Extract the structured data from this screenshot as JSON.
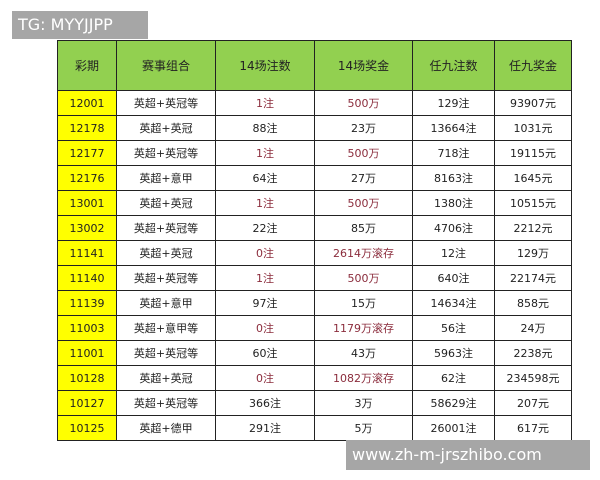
{
  "watermarks": {
    "top_left": "TG: MYYJJPP",
    "bottom_right": "www.zh-m-jrszhibo.com"
  },
  "colors": {
    "header_bg": "#92d050",
    "period_bg": "#ffff00",
    "highlight_text": "#8b2c3c"
  },
  "table": {
    "headers": [
      "彩期",
      "赛事组合",
      "14场注数",
      "14场奖金",
      "任九注数",
      "任九奖金"
    ],
    "rows": [
      {
        "period": "12001",
        "combo": "英超+英冠等",
        "n14": "1注",
        "p14": "500万",
        "n9": "129注",
        "p9": "93907元",
        "red": true
      },
      {
        "period": "12178",
        "combo": "英超+英冠",
        "n14": "88注",
        "p14": "23万",
        "n9": "13664注",
        "p9": "1031元",
        "red": false
      },
      {
        "period": "12177",
        "combo": "英超+英冠等",
        "n14": "1注",
        "p14": "500万",
        "n9": "718注",
        "p9": "19115元",
        "red": true
      },
      {
        "period": "12176",
        "combo": "英超+意甲",
        "n14": "64注",
        "p14": "27万",
        "n9": "8163注",
        "p9": "1645元",
        "red": false
      },
      {
        "period": "13001",
        "combo": "英超+英冠",
        "n14": "1注",
        "p14": "500万",
        "n9": "1380注",
        "p9": "10515元",
        "red": true
      },
      {
        "period": "13002",
        "combo": "英超+英冠等",
        "n14": "22注",
        "p14": "85万",
        "n9": "4706注",
        "p9": "2212元",
        "red": false
      },
      {
        "period": "11141",
        "combo": "英超+英冠",
        "n14": "0注",
        "p14": "2614万滚存",
        "n9": "12注",
        "p9": "129万",
        "red": true
      },
      {
        "period": "11140",
        "combo": "英超+英冠等",
        "n14": "1注",
        "p14": "500万",
        "n9": "640注",
        "p9": "22174元",
        "red": true
      },
      {
        "period": "11139",
        "combo": "英超+意甲",
        "n14": "97注",
        "p14": "15万",
        "n9": "14634注",
        "p9": "858元",
        "red": false
      },
      {
        "period": "11003",
        "combo": "英超+意甲等",
        "n14": "0注",
        "p14": "1179万滚存",
        "n9": "56注",
        "p9": "24万",
        "red": true
      },
      {
        "period": "11001",
        "combo": "英超+英冠等",
        "n14": "60注",
        "p14": "43万",
        "n9": "5963注",
        "p9": "2238元",
        "red": false
      },
      {
        "period": "10128",
        "combo": "英超+英冠",
        "n14": "0注",
        "p14": "1082万滚存",
        "n9": "62注",
        "p9": "234598元",
        "red": true
      },
      {
        "period": "10127",
        "combo": "英超+英冠等",
        "n14": "366注",
        "p14": "3万",
        "n9": "58629注",
        "p9": "207元",
        "red": false
      },
      {
        "period": "10125",
        "combo": "英超+德甲",
        "n14": "291注",
        "p14": "5万",
        "n9": "26001注",
        "p9": "617元",
        "red": false
      }
    ]
  }
}
